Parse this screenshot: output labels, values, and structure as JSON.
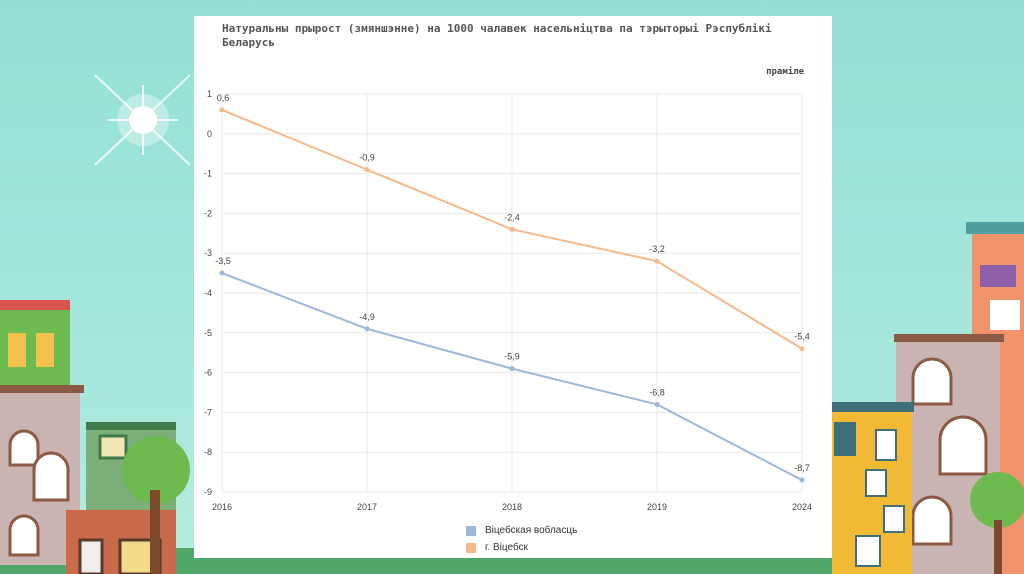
{
  "colors": {
    "series_1": "#9db7dd",
    "series_2": "#f7b98a",
    "grid": "#e8e8e8",
    "axis_text": "#444444",
    "label_text": "#444444"
  },
  "chart_data": {
    "type": "line",
    "title": "Натуральны прырост (змяншэнне) на 1000 чалавек насельніцтва па тэрыторыі Рэспублікі Беларусь",
    "ylabel": "праміле",
    "xlabel": "",
    "categories": [
      "2016",
      "2017",
      "2018",
      "2019",
      "2024"
    ],
    "ylim": [
      -9,
      1
    ],
    "yticks": [
      1,
      0,
      -1,
      -2,
      -3,
      -4,
      -5,
      -6,
      -7,
      -8,
      -9
    ],
    "grid": true,
    "legend_position": "bottom",
    "series": [
      {
        "name": "Віцебская вобласць",
        "values": [
          -3.5,
          -4.9,
          -5.9,
          -6.8,
          -8.7
        ],
        "labels": [
          "-3,5",
          "-4,9",
          "-5,9",
          "-6,8",
          "-8,7"
        ]
      },
      {
        "name": "г. Віцебск",
        "values": [
          0.6,
          -0.9,
          -2.4,
          -3.2,
          -5.4
        ],
        "labels": [
          "0,6",
          "-0,9",
          "-2,4",
          "-3,2",
          "-5,4"
        ]
      }
    ]
  }
}
